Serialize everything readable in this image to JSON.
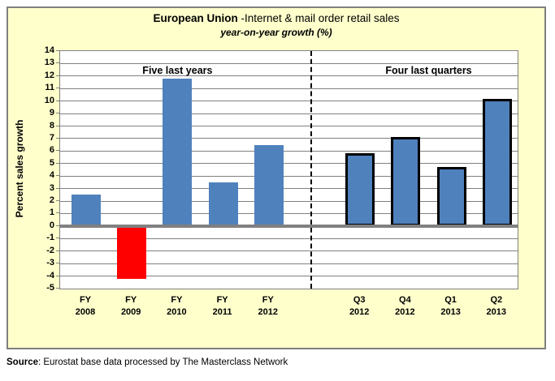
{
  "source": {
    "label": "Source",
    "rest": ": Eurostat base data processed by The Masterclass Network"
  },
  "chart_data": {
    "type": "bar",
    "title_bold": "European Union",
    "title_rest": " -Internet & mail order retail sales",
    "subtitle": "year-on-year growth  (%)",
    "ylabel": "Percent sales growth",
    "ylim": [
      -5,
      14
    ],
    "ytick_step": 1,
    "grid": true,
    "legend_position": "none",
    "sections": [
      {
        "label": "Five last years",
        "categories": [
          [
            "FY",
            "2008"
          ],
          [
            "FY",
            "2009"
          ],
          [
            "FY",
            "2010"
          ],
          [
            "FY",
            "2011"
          ],
          [
            "FY",
            "2012"
          ]
        ],
        "values": [
          2.5,
          -4.2,
          11.8,
          3.5,
          6.5
        ],
        "outlined": false
      },
      {
        "label": "Four last quarters",
        "categories": [
          [
            "Q3",
            "2012"
          ],
          [
            "Q4",
            "2012"
          ],
          [
            "Q1",
            "2013"
          ],
          [
            "Q2",
            "2013"
          ]
        ],
        "values": [
          5.8,
          7.1,
          4.7,
          10.2
        ],
        "outlined": true
      }
    ],
    "colors": {
      "bar": "#4F81BD",
      "negative_bar": "#FF0000",
      "outline": "#000000",
      "background": "#FFFFCC",
      "plot_background": "#FFFFFF",
      "gridline": "#808080",
      "zero_line": "#808080",
      "divider": "#000000"
    }
  }
}
